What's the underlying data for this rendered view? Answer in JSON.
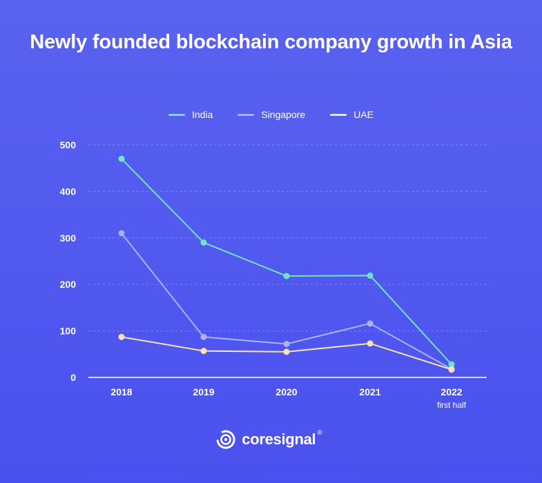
{
  "chart_data": {
    "type": "line",
    "title": "Newly founded blockchain company growth in Asia",
    "categories": [
      "2018",
      "2019",
      "2020",
      "2021",
      "2022"
    ],
    "category_sublabels": [
      "",
      "",
      "",
      "",
      "first half"
    ],
    "ylim": [
      0,
      500
    ],
    "yticks": [
      0,
      100,
      200,
      300,
      400,
      500
    ],
    "grid": true,
    "legend_position": "top-center",
    "series": [
      {
        "name": "India",
        "color": "#6ee7c0",
        "values": [
          470,
          290,
          218,
          219,
          28
        ]
      },
      {
        "name": "Singapore",
        "color": "#a9b3f7",
        "values": [
          310,
          87,
          72,
          116,
          18
        ]
      },
      {
        "name": "UAE",
        "color": "#fde3b4",
        "values": [
          87,
          57,
          55,
          73,
          17
        ]
      }
    ]
  },
  "brand": {
    "name": "coresignal",
    "reg": "®",
    "logo_icon": "coresignal-logo-icon"
  }
}
